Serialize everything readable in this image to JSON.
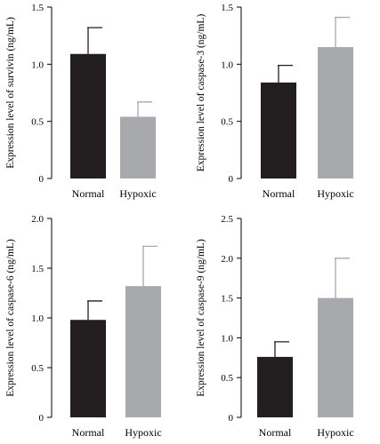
{
  "chart_data": [
    {
      "type": "bar",
      "categories": [
        "Normal",
        "Hypoxic"
      ],
      "values": [
        1.09,
        0.54
      ],
      "errors": [
        0.23,
        0.13
      ],
      "ylabel": "Expression level of survivin (ng/mL)",
      "ylim": [
        0,
        1.5
      ],
      "yticks": [
        0,
        0.5,
        1.0,
        1.5
      ],
      "ytick_labels": [
        "0",
        "0.5",
        "1.0",
        "1.5"
      ],
      "colors": [
        "#231f20",
        "#a7a9ac"
      ],
      "grid": false
    },
    {
      "type": "bar",
      "categories": [
        "Normal",
        "Hypoxic"
      ],
      "values": [
        0.84,
        1.15
      ],
      "errors": [
        0.15,
        0.26
      ],
      "ylabel": "Expression level of caspase-3 (ng/mL)",
      "ylim": [
        0,
        1.5
      ],
      "yticks": [
        0,
        0.5,
        1.0,
        1.5
      ],
      "ytick_labels": [
        "0",
        "0.5",
        "1.0",
        "1.5"
      ],
      "colors": [
        "#231f20",
        "#a7a9ac"
      ],
      "grid": false
    },
    {
      "type": "bar",
      "categories": [
        "Normal",
        "Hypoxic"
      ],
      "values": [
        0.98,
        1.32
      ],
      "errors": [
        0.19,
        0.4
      ],
      "ylabel": "Expression level of caspase-6 (ng/mL)",
      "ylim": [
        0,
        2.0
      ],
      "yticks": [
        0,
        0.5,
        1.0,
        1.5,
        2.0
      ],
      "ytick_labels": [
        "0",
        "0.5",
        "1.0",
        "1.5",
        "2.0"
      ],
      "colors": [
        "#231f20",
        "#a7a9ac"
      ],
      "grid": false
    },
    {
      "type": "bar",
      "categories": [
        "Normal",
        "Hypoxic"
      ],
      "values": [
        0.76,
        1.5
      ],
      "errors": [
        0.19,
        0.5
      ],
      "ylabel": "Expression level of caspase-9 (ng/mL)",
      "ylim": [
        0,
        2.5
      ],
      "yticks": [
        0,
        0.5,
        1.0,
        1.5,
        2.0,
        2.5
      ],
      "ytick_labels": [
        "0",
        "0.5",
        "1.0",
        "1.5",
        "2.0",
        "2.5"
      ],
      "colors": [
        "#231f20",
        "#a7a9ac"
      ],
      "grid": false
    }
  ]
}
